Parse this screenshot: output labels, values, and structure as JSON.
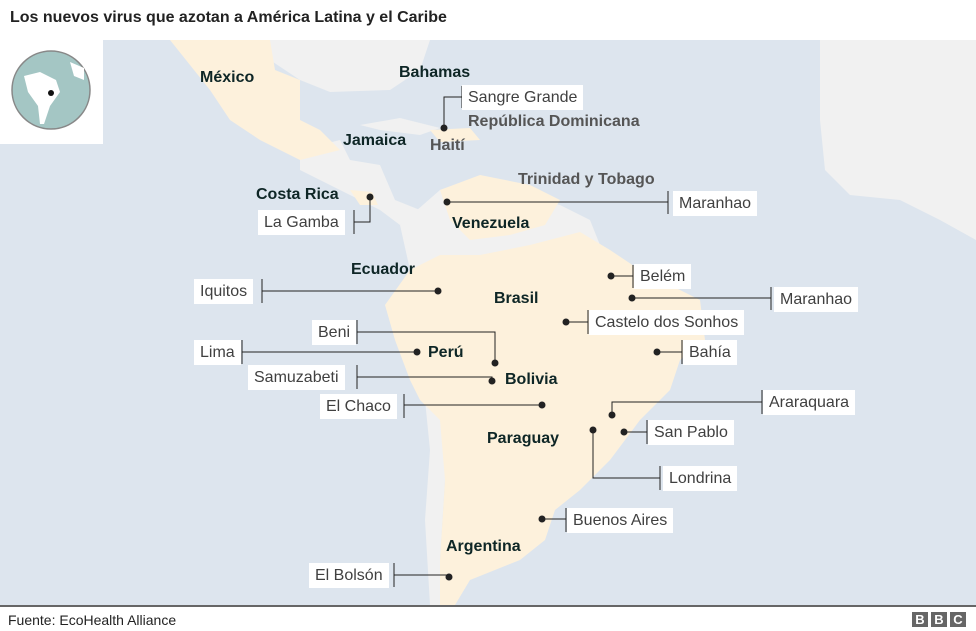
{
  "title": "Los nuevos virus que azotan a América Latina y el Caribe",
  "source": "Fuente: EcoHealth Alliance",
  "logo": "BBC",
  "colors": {
    "ocean": "#dde5ee",
    "highlighted_land": "#fdf1dc",
    "other_land": "#f1f1f1",
    "dot": "#222222"
  },
  "countries": [
    "México",
    "Bahamas",
    "República Dominicana",
    "Haití",
    "Jamaica",
    "Costa Rica",
    "Trinidad y Tobago",
    "Venezuela",
    "Ecuador",
    "Brasil",
    "Perú",
    "Bolivia",
    "Paraguay",
    "Argentina"
  ],
  "places": [
    "Sangre Grande",
    "La Gamba",
    "Maranhao",
    "Iquitos",
    "Beni",
    "Lima",
    "Samuzabeti",
    "El Chaco",
    "Belém",
    "Maranhao",
    "Castelo dos Sonhos",
    "Bahía",
    "Araraquara",
    "San Pablo",
    "Londrina",
    "Buenos Aires",
    "El Bolsón"
  ]
}
